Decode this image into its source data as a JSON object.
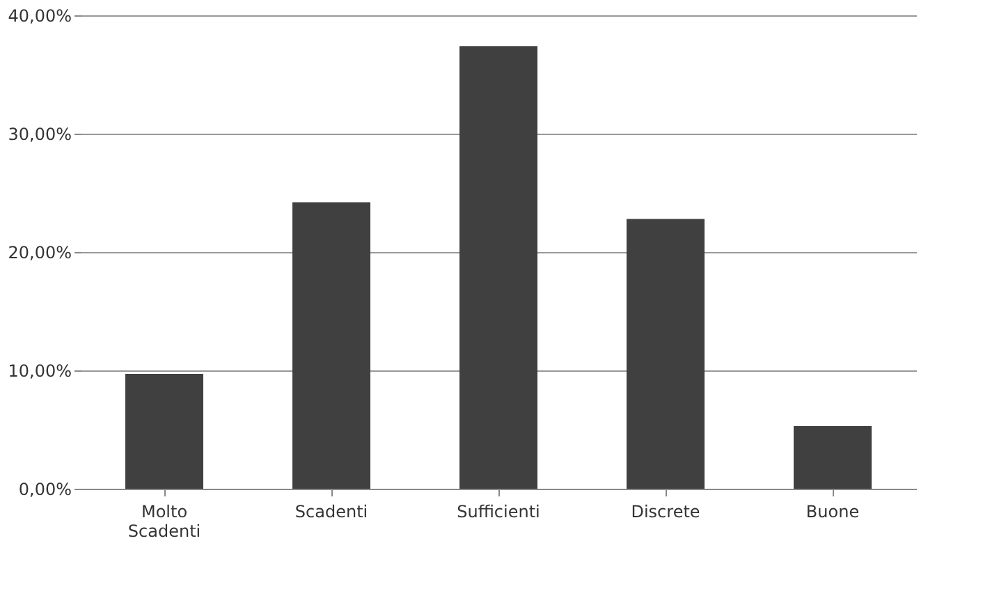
{
  "chart_data": {
    "type": "bar",
    "categories": [
      "Molto Scadenti",
      "Scadenti",
      "Sufficienti",
      "Discrete",
      "Buone"
    ],
    "values": [
      9.7,
      24.2,
      37.4,
      22.8,
      5.3
    ],
    "color": "#404040",
    "ylim": [
      0,
      40
    ],
    "yticks": [
      {
        "value": 0,
        "label": "0,00%"
      },
      {
        "value": 10,
        "label": "10,00%"
      },
      {
        "value": 20,
        "label": "20,00%"
      },
      {
        "value": 30,
        "label": "30,00%"
      },
      {
        "value": 40,
        "label": "40,00%"
      }
    ],
    "grid": "y"
  }
}
